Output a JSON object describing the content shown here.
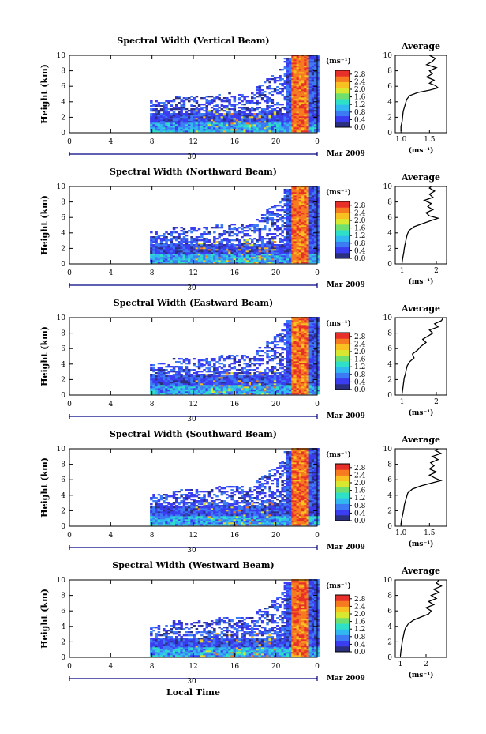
{
  "figure": {
    "xlabel": "Local Time",
    "date_label": "Mar 2009",
    "date_day": "30",
    "ylabel": "Height (km)",
    "colorbar_unit": "(ms⁻¹)",
    "average_title": "Average",
    "average_unit": "(ms⁻¹)"
  },
  "chart_data": [
    {
      "type": "heatmap",
      "title": "Spectral Width (Vertical Beam)",
      "xlabel": "",
      "ylabel": "Height (km)",
      "xlim": [
        0,
        24
      ],
      "ylim": [
        0,
        10
      ],
      "x_ticks": [
        "0",
        "4",
        "8",
        "12",
        "16",
        "20",
        "0"
      ],
      "y_ticks": [
        "0",
        "2",
        "4",
        "6",
        "8",
        "10"
      ],
      "colorbar": {
        "ticks": [
          "0.0",
          "0.4",
          "0.8",
          "1.2",
          "1.6",
          "2.0",
          "2.4",
          "2.8"
        ],
        "range": [
          0,
          3.0
        ]
      },
      "average": {
        "xlim": [
          0.9,
          1.8
        ],
        "x_ticks": [
          "1.0",
          "1.5"
        ],
        "y_ticks": [
          "0",
          "2",
          "4",
          "6",
          "8",
          "10"
        ],
        "profile": [
          [
            0.2,
            1.0
          ],
          [
            0.8,
            1.0
          ],
          [
            1.5,
            1.02
          ],
          [
            2.2,
            1.03
          ],
          [
            2.8,
            1.04
          ],
          [
            3.3,
            1.06
          ],
          [
            3.8,
            1.08
          ],
          [
            4.3,
            1.1
          ],
          [
            4.8,
            1.15
          ],
          [
            5.2,
            1.3
          ],
          [
            5.5,
            1.5
          ],
          [
            5.8,
            1.65
          ],
          [
            6.1,
            1.6
          ],
          [
            6.4,
            1.5
          ],
          [
            6.8,
            1.58
          ],
          [
            7.2,
            1.45
          ],
          [
            7.6,
            1.55
          ],
          [
            8.0,
            1.5
          ],
          [
            8.4,
            1.62
          ],
          [
            8.8,
            1.45
          ],
          [
            9.2,
            1.55
          ],
          [
            9.6,
            1.6
          ],
          [
            10.0,
            1.5
          ]
        ]
      }
    },
    {
      "type": "heatmap",
      "title": "Spectral Width (Northward Beam)",
      "xlabel": "",
      "ylabel": "Height (km)",
      "xlim": [
        0,
        24
      ],
      "ylim": [
        0,
        10
      ],
      "x_ticks": [
        "0",
        "4",
        "8",
        "12",
        "16",
        "20",
        "0"
      ],
      "y_ticks": [
        "0",
        "2",
        "4",
        "6",
        "8",
        "10"
      ],
      "colorbar": {
        "ticks": [
          "0.0",
          "0.4",
          "0.8",
          "1.2",
          "1.6",
          "2.0",
          "2.4",
          "2.8"
        ],
        "range": [
          0,
          3.0
        ]
      },
      "average": {
        "xlim": [
          0.8,
          2.3
        ],
        "x_ticks": [
          "1",
          "2"
        ],
        "y_ticks": [
          "0",
          "2",
          "4",
          "6",
          "8",
          "10"
        ],
        "profile": [
          [
            0.2,
            1.0
          ],
          [
            0.8,
            1.02
          ],
          [
            1.5,
            1.05
          ],
          [
            2.2,
            1.07
          ],
          [
            2.8,
            1.1
          ],
          [
            3.3,
            1.12
          ],
          [
            3.8,
            1.15
          ],
          [
            4.3,
            1.2
          ],
          [
            4.8,
            1.35
          ],
          [
            5.2,
            1.6
          ],
          [
            5.6,
            1.85
          ],
          [
            5.9,
            2.05
          ],
          [
            6.2,
            1.8
          ],
          [
            6.6,
            1.7
          ],
          [
            7.0,
            1.9
          ],
          [
            7.4,
            1.75
          ],
          [
            7.8,
            1.85
          ],
          [
            8.2,
            1.65
          ],
          [
            8.6,
            1.9
          ],
          [
            9.0,
            1.8
          ],
          [
            9.4,
            1.95
          ],
          [
            9.8,
            1.8
          ],
          [
            10.0,
            1.85
          ]
        ]
      }
    },
    {
      "type": "heatmap",
      "title": "Spectral Width (Eastward Beam)",
      "xlabel": "",
      "ylabel": "Height (km)",
      "xlim": [
        0,
        24
      ],
      "ylim": [
        0,
        10
      ],
      "x_ticks": [
        "0",
        "4",
        "8",
        "12",
        "16",
        "20",
        "0"
      ],
      "y_ticks": [
        "0",
        "2",
        "4",
        "6",
        "8",
        "10"
      ],
      "colorbar": {
        "ticks": [
          "0.0",
          "0.4",
          "0.8",
          "1.2",
          "1.6",
          "2.0",
          "2.4",
          "2.8"
        ],
        "range": [
          0,
          3.0
        ]
      },
      "average": {
        "xlim": [
          0.8,
          2.3
        ],
        "x_ticks": [
          "1",
          "2"
        ],
        "y_ticks": [
          "0",
          "2",
          "4",
          "6",
          "8",
          "10"
        ],
        "profile": [
          [
            0.2,
            1.0
          ],
          [
            0.8,
            1.02
          ],
          [
            1.5,
            1.04
          ],
          [
            2.2,
            1.06
          ],
          [
            2.8,
            1.1
          ],
          [
            3.3,
            1.12
          ],
          [
            3.8,
            1.15
          ],
          [
            4.3,
            1.22
          ],
          [
            4.8,
            1.35
          ],
          [
            5.3,
            1.3
          ],
          [
            5.8,
            1.45
          ],
          [
            6.3,
            1.55
          ],
          [
            6.8,
            1.7
          ],
          [
            7.2,
            1.6
          ],
          [
            7.6,
            1.75
          ],
          [
            8.0,
            1.9
          ],
          [
            8.4,
            1.8
          ],
          [
            8.8,
            2.05
          ],
          [
            9.2,
            1.95
          ],
          [
            9.6,
            2.15
          ],
          [
            10.0,
            2.2
          ]
        ]
      }
    },
    {
      "type": "heatmap",
      "title": "Spectral Width (Southward Beam)",
      "xlabel": "",
      "ylabel": "Height (km)",
      "xlim": [
        0,
        24
      ],
      "ylim": [
        0,
        10
      ],
      "x_ticks": [
        "0",
        "4",
        "8",
        "12",
        "16",
        "20",
        "0"
      ],
      "y_ticks": [
        "0",
        "2",
        "4",
        "6",
        "8",
        "10"
      ],
      "colorbar": {
        "ticks": [
          "0.0",
          "0.4",
          "0.8",
          "1.2",
          "1.6",
          "2.0",
          "2.4",
          "2.8"
        ],
        "range": [
          0,
          3.0
        ]
      },
      "average": {
        "xlim": [
          0.9,
          1.8
        ],
        "x_ticks": [
          "1.0",
          "1.5"
        ],
        "y_ticks": [
          "0",
          "2",
          "4",
          "6",
          "8",
          "10"
        ],
        "profile": [
          [
            0.2,
            1.0
          ],
          [
            0.8,
            1.01
          ],
          [
            1.5,
            1.03
          ],
          [
            2.2,
            1.05
          ],
          [
            2.8,
            1.06
          ],
          [
            3.3,
            1.08
          ],
          [
            3.8,
            1.1
          ],
          [
            4.3,
            1.12
          ],
          [
            4.8,
            1.2
          ],
          [
            5.2,
            1.35
          ],
          [
            5.6,
            1.55
          ],
          [
            5.9,
            1.7
          ],
          [
            6.2,
            1.6
          ],
          [
            6.6,
            1.5
          ],
          [
            7.0,
            1.62
          ],
          [
            7.4,
            1.5
          ],
          [
            7.8,
            1.58
          ],
          [
            8.2,
            1.52
          ],
          [
            8.6,
            1.65
          ],
          [
            9.0,
            1.55
          ],
          [
            9.4,
            1.7
          ],
          [
            9.8,
            1.6
          ],
          [
            10.0,
            1.65
          ]
        ]
      }
    },
    {
      "type": "heatmap",
      "title": "Spectral Width (Westward Beam)",
      "xlabel": "Local Time",
      "ylabel": "Height (km)",
      "xlim": [
        0,
        24
      ],
      "ylim": [
        0,
        10
      ],
      "x_ticks": [
        "0",
        "4",
        "8",
        "12",
        "16",
        "20",
        "0"
      ],
      "y_ticks": [
        "0",
        "2",
        "4",
        "6",
        "8",
        "10"
      ],
      "colorbar": {
        "ticks": [
          "0.0",
          "0.4",
          "0.8",
          "1.2",
          "1.6",
          "2.0",
          "2.4",
          "2.8"
        ],
        "range": [
          0,
          3.0
        ]
      },
      "average": {
        "xlim": [
          0.8,
          2.8
        ],
        "x_ticks": [
          "1",
          "2"
        ],
        "y_ticks": [
          "0",
          "2",
          "4",
          "6",
          "8",
          "10"
        ],
        "profile": [
          [
            0.2,
            1.0
          ],
          [
            0.8,
            1.02
          ],
          [
            1.5,
            1.05
          ],
          [
            2.2,
            1.08
          ],
          [
            2.8,
            1.12
          ],
          [
            3.3,
            1.15
          ],
          [
            3.8,
            1.2
          ],
          [
            4.3,
            1.3
          ],
          [
            4.8,
            1.5
          ],
          [
            5.2,
            1.8
          ],
          [
            5.6,
            2.1
          ],
          [
            6.0,
            2.2
          ],
          [
            6.4,
            2.0
          ],
          [
            6.8,
            2.3
          ],
          [
            7.2,
            2.1
          ],
          [
            7.6,
            2.4
          ],
          [
            8.0,
            2.2
          ],
          [
            8.4,
            2.5
          ],
          [
            8.8,
            2.3
          ],
          [
            9.2,
            2.6
          ],
          [
            9.6,
            2.4
          ],
          [
            10.0,
            2.5
          ]
        ]
      }
    }
  ],
  "colors": {
    "colormap": [
      "#2b2f7f",
      "#3a3df0",
      "#3d7bf5",
      "#32b8f0",
      "#2ee0c8",
      "#6fe070",
      "#d8e830",
      "#f8c020",
      "#f57a20",
      "#e8302a"
    ],
    "frame": "#000000",
    "axis_line": "#000080"
  }
}
